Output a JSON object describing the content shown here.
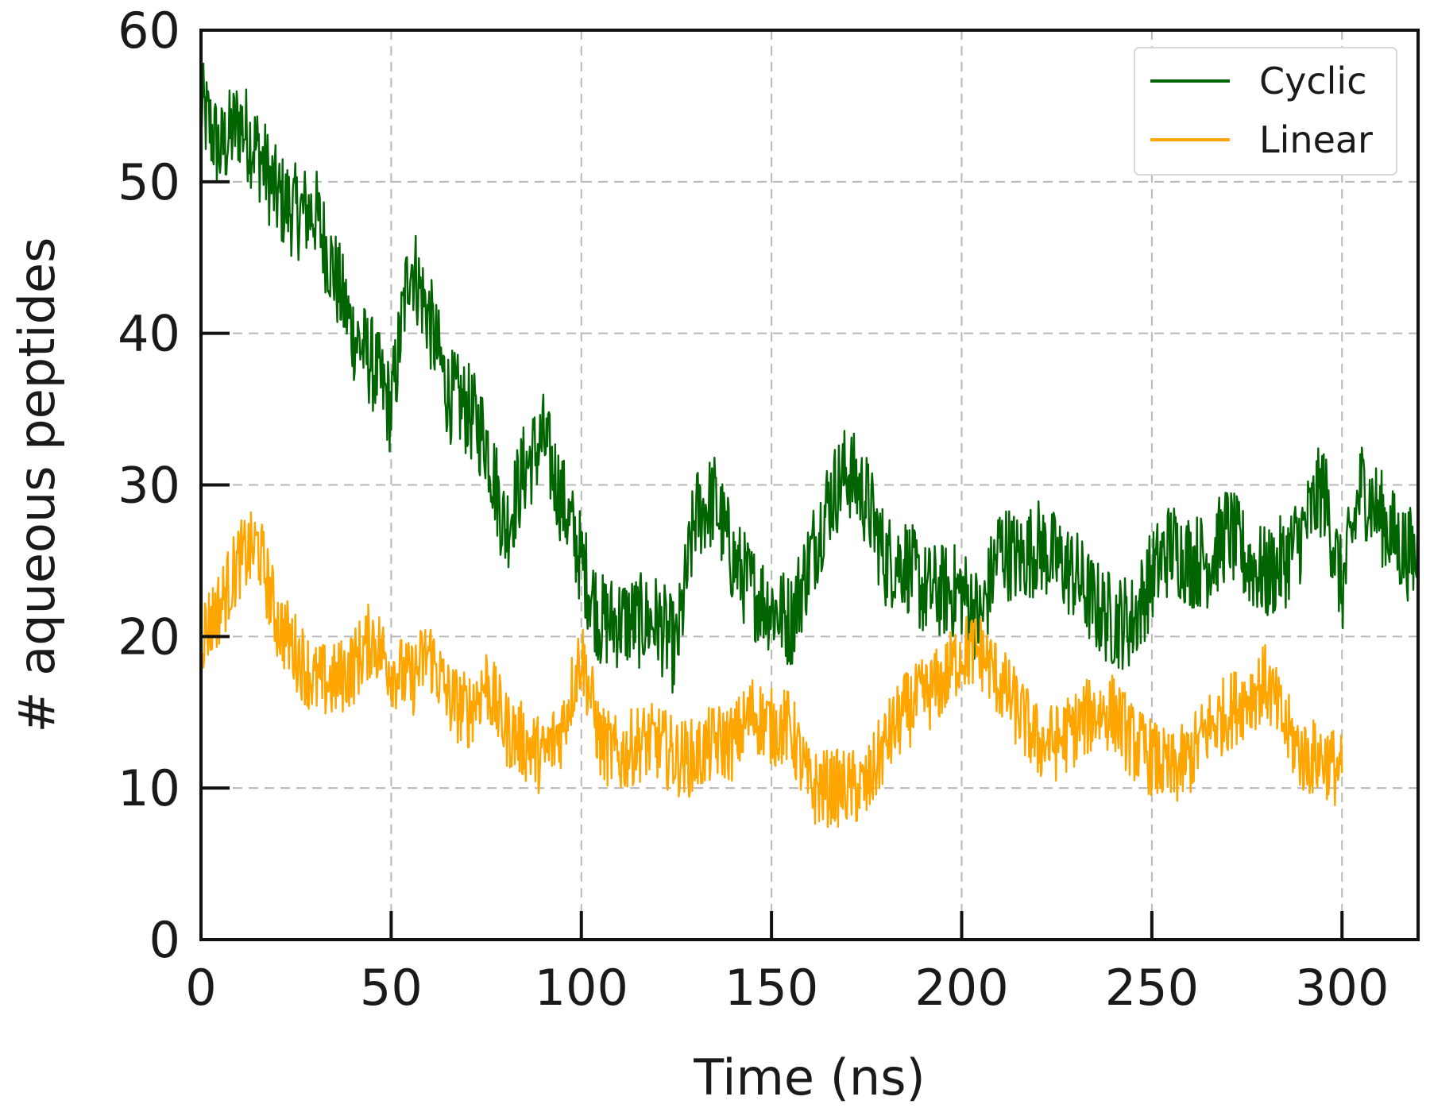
{
  "chart_data": {
    "type": "line",
    "title": "",
    "xlabel": "Time (ns)",
    "ylabel": "# aqueous peptides",
    "xlim": [
      0,
      320
    ],
    "ylim": [
      0,
      60
    ],
    "xticks": [
      0,
      50,
      100,
      150,
      200,
      250,
      300
    ],
    "yticks": [
      0,
      10,
      20,
      30,
      40,
      50,
      60
    ],
    "grid": true,
    "legend_position": "top-right",
    "series": [
      {
        "name": "Cyclic",
        "color": "#006400",
        "x": [
          0,
          5,
          10,
          15,
          20,
          25,
          30,
          35,
          40,
          45,
          50,
          55,
          60,
          65,
          70,
          75,
          80,
          85,
          90,
          95,
          100,
          105,
          110,
          115,
          120,
          125,
          130,
          135,
          140,
          145,
          150,
          155,
          160,
          165,
          170,
          175,
          180,
          185,
          190,
          195,
          200,
          205,
          210,
          215,
          220,
          225,
          230,
          235,
          240,
          245,
          250,
          255,
          260,
          265,
          270,
          275,
          280,
          285,
          290,
          295,
          300,
          305,
          310,
          315,
          320
        ],
        "y": [
          55,
          52,
          54,
          52,
          49,
          48,
          48,
          44,
          40,
          38,
          35,
          45,
          41,
          36,
          35,
          33,
          27,
          31,
          33,
          29,
          25,
          21,
          21,
          21,
          21,
          19,
          28,
          29,
          25,
          23,
          22,
          21,
          25,
          29,
          31,
          29,
          25,
          25,
          23,
          23,
          23,
          21,
          26,
          25,
          26,
          25,
          24,
          22,
          21,
          21,
          24,
          26,
          25,
          25,
          27,
          25,
          24,
          25,
          27,
          30,
          23,
          30,
          28,
          26,
          25
        ]
      },
      {
        "name": "Linear",
        "color": "#ffa500",
        "x": [
          0,
          5,
          10,
          15,
          20,
          25,
          30,
          35,
          40,
          45,
          50,
          55,
          60,
          65,
          70,
          75,
          80,
          85,
          90,
          95,
          100,
          105,
          110,
          115,
          120,
          125,
          130,
          135,
          140,
          145,
          150,
          155,
          160,
          165,
          170,
          175,
          180,
          185,
          190,
          195,
          200,
          205,
          210,
          215,
          220,
          225,
          230,
          235,
          240,
          245,
          250,
          255,
          260,
          265,
          270,
          275,
          280,
          285,
          290,
          295,
          300
        ],
        "y": [
          20,
          22,
          25,
          26,
          21,
          19,
          17,
          17,
          18,
          20,
          18,
          17,
          19,
          16,
          15,
          17,
          14,
          13,
          12,
          14,
          19,
          13,
          12,
          13,
          13,
          12,
          12,
          13,
          13,
          15,
          14,
          14,
          10,
          10,
          10,
          10,
          13,
          15,
          16,
          17,
          19,
          19,
          17,
          15,
          13,
          13,
          14,
          15,
          15,
          13,
          12,
          11,
          12,
          14,
          15,
          16,
          17,
          14,
          12,
          12,
          11
        ]
      }
    ]
  }
}
